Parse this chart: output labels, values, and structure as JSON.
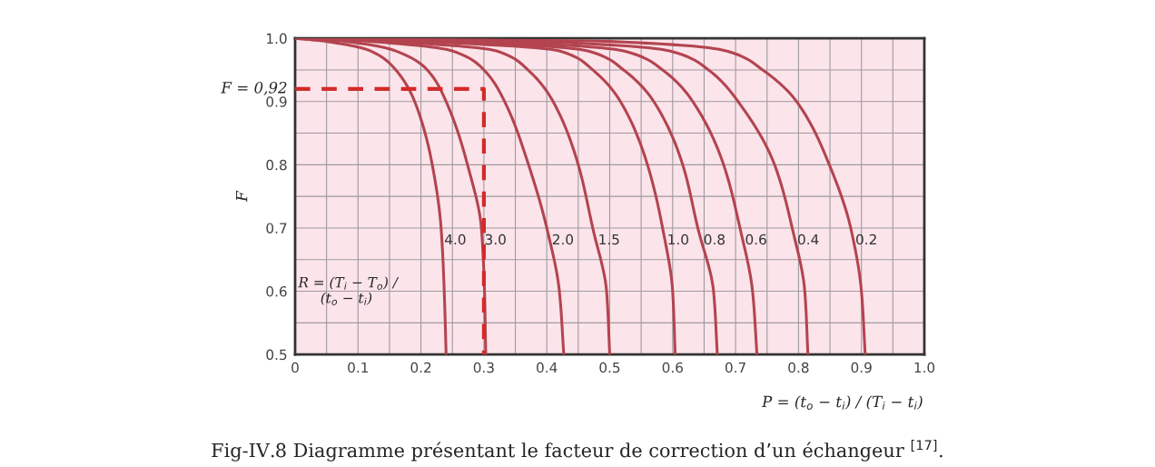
{
  "chart_data": {
    "type": "line",
    "title": "Fig-IV.8 Diagramme présentant le facteur de correction d’un échangeur $^{[17]}$.",
    "xlabel": "P = (t$_{o}$ − t$_{i}$) / (T$_{i}$ − t$_{i}$)",
    "ylabel": "F",
    "annotations": [
      "R = (T$_{i}$ − T$_{o}$) /\n     (t$_{o}$ − t$_{i}$)",
      {
        "text": "F = 0,92",
        "x": 0,
        "y": 0.92
      }
    ],
    "series": [
      {
        "name": "4.0",
        "color": "#b3444f",
        "x": [
          0,
          0.05,
          0.12,
          0.16,
          0.19,
          0.218,
          0.232,
          0.237,
          0.24
        ],
        "values": [
          1.0,
          0.995,
          0.98,
          0.95,
          0.9,
          0.8,
          0.7,
          0.6,
          0.5
        ]
      },
      {
        "name": "3.0",
        "color": "#b3444f",
        "x": [
          0,
          0.08,
          0.16,
          0.21,
          0.24,
          0.274,
          0.296,
          0.301,
          0.303
        ],
        "values": [
          1.0,
          0.995,
          0.98,
          0.95,
          0.9,
          0.8,
          0.7,
          0.6,
          0.5
        ]
      },
      {
        "name": "2.0",
        "color": "#b3444f",
        "x": [
          0,
          0.12,
          0.25,
          0.3,
          0.333,
          0.371,
          0.4,
          0.42,
          0.427
        ],
        "values": [
          1.0,
          0.995,
          0.98,
          0.95,
          0.9,
          0.8,
          0.7,
          0.6,
          0.5
        ]
      },
      {
        "name": "1.5",
        "color": "#b3444f",
        "x": [
          0,
          0.15,
          0.32,
          0.37,
          0.41,
          0.45,
          0.473,
          0.495,
          0.5
        ],
        "values": [
          1.0,
          0.995,
          0.98,
          0.95,
          0.9,
          0.8,
          0.7,
          0.6,
          0.5
        ]
      },
      {
        "name": "1.0",
        "color": "#b3444f",
        "x": [
          0,
          0.2,
          0.42,
          0.473,
          0.517,
          0.56,
          0.584,
          0.6,
          0.604
        ],
        "values": [
          1.0,
          0.995,
          0.98,
          0.95,
          0.9,
          0.8,
          0.7,
          0.6,
          0.5
        ]
      },
      {
        "name": "0.8",
        "color": "#b3444f",
        "x": [
          0,
          0.25,
          0.465,
          0.522,
          0.57,
          0.616,
          0.64,
          0.665,
          0.671
        ],
        "values": [
          1.0,
          0.995,
          0.98,
          0.95,
          0.9,
          0.8,
          0.7,
          0.6,
          0.5
        ]
      },
      {
        "name": "0.6",
        "color": "#b3444f",
        "x": [
          0,
          0.3,
          0.522,
          0.584,
          0.632,
          0.681,
          0.707,
          0.727,
          0.734
        ],
        "values": [
          1.0,
          0.995,
          0.98,
          0.95,
          0.9,
          0.8,
          0.7,
          0.6,
          0.5
        ]
      },
      {
        "name": "0.4",
        "color": "#b3444f",
        "x": [
          0,
          0.38,
          0.595,
          0.657,
          0.704,
          0.762,
          0.79,
          0.81,
          0.815
        ],
        "values": [
          1.0,
          0.995,
          0.98,
          0.95,
          0.9,
          0.8,
          0.7,
          0.6,
          0.5
        ]
      },
      {
        "name": "0.2",
        "color": "#b3444f",
        "x": [
          0,
          0.5,
          0.685,
          0.743,
          0.797,
          0.849,
          0.883,
          0.9,
          0.906
        ],
        "values": [
          1.0,
          0.995,
          0.98,
          0.95,
          0.9,
          0.8,
          0.7,
          0.6,
          0.5
        ]
      },
      {
        "color": "#d42a2a",
        "line_style": "dashed",
        "x": [
          0,
          0.3,
          0.3
        ],
        "values": [
          0.92,
          0.92,
          0.5
        ]
      }
    ],
    "xlim": [
      0,
      1.0
    ],
    "ylim": [
      0.5,
      1.0
    ],
    "xticks": [
      0,
      {
        "value": 0.05,
        "label": null
      },
      0.1,
      {
        "value": 0.15,
        "label": null
      },
      0.2,
      {
        "value": 0.25,
        "label": null
      },
      0.3,
      {
        "value": 0.35,
        "label": null
      },
      0.4,
      {
        "value": 0.45,
        "label": null
      },
      0.5,
      {
        "value": 0.55,
        "label": null
      },
      0.6,
      {
        "value": 0.65,
        "label": null
      },
      0.7,
      {
        "value": 0.75,
        "label": null
      },
      0.8,
      {
        "value": 0.85,
        "label": null
      },
      0.9,
      {
        "value": 0.95,
        "label": null
      },
      {
        "value": 1.0,
        "label": "1.0"
      }
    ],
    "yticks": [
      0.5,
      {
        "value": 0.55,
        "label": null
      },
      0.6,
      {
        "value": 0.65,
        "label": null
      },
      0.7,
      {
        "value": 0.75,
        "label": null
      },
      0.8,
      {
        "value": 0.85,
        "label": null
      },
      0.9,
      {
        "value": 0.95,
        "label": null
      },
      {
        "value": 1.0,
        "label": "1.0"
      }
    ],
    "grid": true,
    "marker": "none"
  }
}
